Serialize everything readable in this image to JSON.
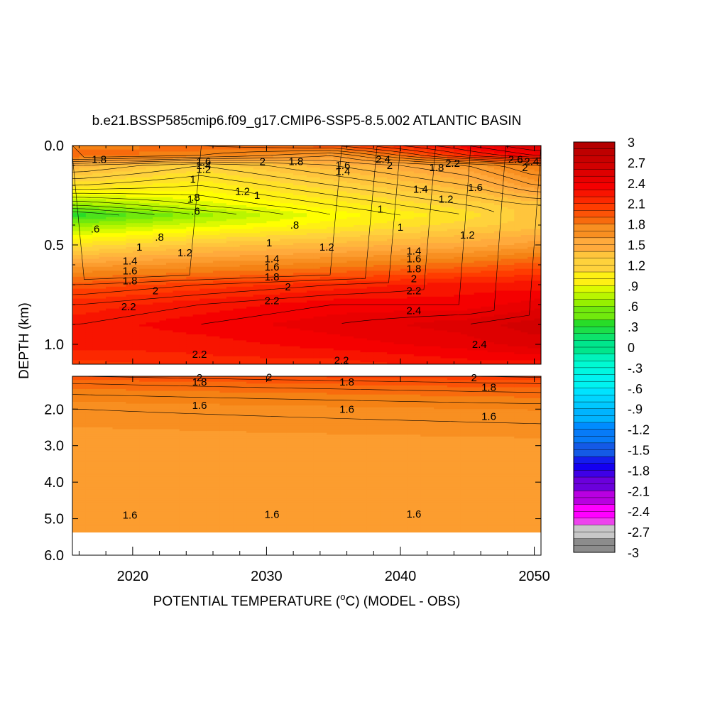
{
  "chart_data": {
    "type": "heatmap",
    "title": "b.e21.BSSP585cmip6.f09_g17.CMIP6-SSP5-8.5.002 ATLANTIC BASIN",
    "ylabel": "DEPTH (km)",
    "xlabel_parts": {
      "before": "POTENTIAL TEMPERATURE (",
      "sup": "o",
      "after": "C) (MODEL - OBS)"
    },
    "xlim": [
      2015.5,
      2050.5
    ],
    "x_ticks": [
      "2020",
      "2030",
      "2040",
      "2050"
    ],
    "upper_panel": {
      "ylim": [
        0.0,
        1.1
      ],
      "y_ticks": [
        "0.0",
        "0.5",
        "1.0"
      ]
    },
    "lower_panel": {
      "ylim": [
        1.1,
        6.0
      ],
      "y_ticks": [
        "2.0",
        "3.0",
        "4.0",
        "5.0",
        "6.0"
      ]
    },
    "colorbar": {
      "range": [
        -3,
        3
      ],
      "step": 0.1,
      "labels": [
        "3",
        "2.7",
        "2.4",
        "2.1",
        "1.8",
        "1.5",
        "1.2",
        ".9",
        ".6",
        ".3",
        "0",
        "-.3",
        "-.6",
        "-.9",
        "-1.2",
        "-1.5",
        "-1.8",
        "-2.1",
        "-2.4",
        "-2.7",
        "-3"
      ]
    },
    "depth_profile": {
      "depth_km": [
        0.0,
        0.05,
        0.1,
        0.2,
        0.3,
        0.35,
        0.4,
        0.5,
        0.6,
        0.7,
        0.8,
        0.9,
        1.0,
        1.1
      ],
      "years": [
        2016,
        2025,
        2035,
        2045,
        2050
      ],
      "values": [
        [
          1.8,
          1.9,
          2.0,
          2.4,
          2.6
        ],
        [
          1.9,
          1.8,
          1.6,
          2.2,
          2.4
        ],
        [
          1.4,
          1.2,
          1.4,
          1.6,
          1.8
        ],
        [
          1.1,
          1.0,
          1.2,
          1.4,
          1.6
        ],
        [
          0.6,
          0.8,
          1.0,
          1.2,
          1.3
        ],
        [
          0.3,
          0.6,
          0.9,
          1.1,
          1.3
        ],
        [
          0.6,
          0.8,
          1.0,
          1.2,
          1.3
        ],
        [
          1.1,
          1.3,
          1.4,
          1.5,
          1.6
        ],
        [
          1.6,
          1.7,
          1.8,
          1.9,
          2.0
        ],
        [
          2.0,
          2.1,
          2.2,
          2.3,
          2.3
        ],
        [
          2.2,
          2.3,
          2.4,
          2.4,
          2.5
        ],
        [
          2.3,
          2.4,
          2.5,
          2.6,
          2.7
        ],
        [
          2.3,
          2.3,
          2.4,
          2.5,
          2.6
        ],
        [
          2.1,
          2.2,
          2.2,
          2.3,
          2.3
        ]
      ],
      "deep": {
        "depth_km": [
          1.1,
          1.3,
          1.6,
          2.0,
          3.0,
          5.0,
          5.4
        ],
        "values": [
          2.0,
          1.9,
          1.8,
          1.7,
          1.6,
          1.6,
          1.6
        ]
      }
    },
    "contour_labels": [
      {
        "text": "1.8",
        "x": 2017.5,
        "y": 0.07,
        "panel": "upper"
      },
      {
        "text": "1.6",
        "x": 2025.3,
        "y": 0.08,
        "panel": "upper"
      },
      {
        "text": "1.4",
        "x": 2025.3,
        "y": 0.1,
        "panel": "upper"
      },
      {
        "text": "1.2",
        "x": 2025.3,
        "y": 0.12,
        "panel": "upper"
      },
      {
        "text": "1",
        "x": 2024.5,
        "y": 0.17,
        "panel": "upper"
      },
      {
        "text": "2",
        "x": 2029.7,
        "y": 0.08,
        "panel": "upper"
      },
      {
        "text": "1.8",
        "x": 2032.2,
        "y": 0.08,
        "panel": "upper"
      },
      {
        "text": "1.6",
        "x": 2035.7,
        "y": 0.1,
        "panel": "upper"
      },
      {
        "text": "1.4",
        "x": 2035.7,
        "y": 0.13,
        "panel": "upper"
      },
      {
        "text": "2.4",
        "x": 2038.7,
        "y": 0.07,
        "panel": "upper"
      },
      {
        "text": "2",
        "x": 2039.2,
        "y": 0.1,
        "panel": "upper"
      },
      {
        "text": "1.8",
        "x": 2042.7,
        "y": 0.11,
        "panel": "upper"
      },
      {
        "text": "2.2",
        "x": 2043.9,
        "y": 0.09,
        "panel": "upper"
      },
      {
        "text": "2.6",
        "x": 2048.6,
        "y": 0.07,
        "panel": "upper"
      },
      {
        "text": "2.4",
        "x": 2049.8,
        "y": 0.08,
        "panel": "upper"
      },
      {
        "text": "2",
        "x": 2049.3,
        "y": 0.11,
        "panel": "upper"
      },
      {
        "text": ".8",
        "x": 2024.7,
        "y": 0.26,
        "panel": "upper"
      },
      {
        "text": ".6",
        "x": 2024.7,
        "y": 0.33,
        "panel": "upper"
      },
      {
        "text": "1",
        "x": 2024.3,
        "y": 0.27,
        "panel": "upper"
      },
      {
        "text": "1",
        "x": 2029.3,
        "y": 0.25,
        "panel": "upper"
      },
      {
        "text": "1.2",
        "x": 2028.2,
        "y": 0.23,
        "panel": "upper"
      },
      {
        "text": "1.4",
        "x": 2041.5,
        "y": 0.22,
        "panel": "upper"
      },
      {
        "text": "1.6",
        "x": 2045.6,
        "y": 0.21,
        "panel": "upper"
      },
      {
        "text": "1.2",
        "x": 2043.4,
        "y": 0.27,
        "panel": "upper"
      },
      {
        "text": "1",
        "x": 2038.5,
        "y": 0.32,
        "panel": "upper"
      },
      {
        "text": "1",
        "x": 2040.0,
        "y": 0.41,
        "panel": "upper"
      },
      {
        "text": ".8",
        "x": 2032.1,
        "y": 0.4,
        "panel": "upper"
      },
      {
        "text": ".6",
        "x": 2017.2,
        "y": 0.42,
        "panel": "upper"
      },
      {
        "text": ".8",
        "x": 2022.0,
        "y": 0.46,
        "panel": "upper"
      },
      {
        "text": "1",
        "x": 2020.5,
        "y": 0.51,
        "panel": "upper"
      },
      {
        "text": "1.2",
        "x": 2023.9,
        "y": 0.54,
        "panel": "upper"
      },
      {
        "text": "1",
        "x": 2030.2,
        "y": 0.49,
        "panel": "upper"
      },
      {
        "text": "1.2",
        "x": 2034.5,
        "y": 0.51,
        "panel": "upper"
      },
      {
        "text": "1.2",
        "x": 2045.0,
        "y": 0.45,
        "panel": "upper"
      },
      {
        "text": "1.4",
        "x": 2019.8,
        "y": 0.58,
        "panel": "upper"
      },
      {
        "text": "1.6",
        "x": 2019.8,
        "y": 0.63,
        "panel": "upper"
      },
      {
        "text": "1.8",
        "x": 2019.8,
        "y": 0.68,
        "panel": "upper"
      },
      {
        "text": "1.4",
        "x": 2030.4,
        "y": 0.57,
        "panel": "upper"
      },
      {
        "text": "1.6",
        "x": 2030.4,
        "y": 0.61,
        "panel": "upper"
      },
      {
        "text": "1.8",
        "x": 2030.4,
        "y": 0.66,
        "panel": "upper"
      },
      {
        "text": "2",
        "x": 2031.6,
        "y": 0.71,
        "panel": "upper"
      },
      {
        "text": "1.4",
        "x": 2041.0,
        "y": 0.53,
        "panel": "upper"
      },
      {
        "text": "1.6",
        "x": 2041.0,
        "y": 0.57,
        "panel": "upper"
      },
      {
        "text": "1.8",
        "x": 2041.0,
        "y": 0.62,
        "panel": "upper"
      },
      {
        "text": "2",
        "x": 2041.0,
        "y": 0.67,
        "panel": "upper"
      },
      {
        "text": "2.2",
        "x": 2041.0,
        "y": 0.73,
        "panel": "upper"
      },
      {
        "text": "2",
        "x": 2021.7,
        "y": 0.73,
        "panel": "upper"
      },
      {
        "text": "2.2",
        "x": 2019.7,
        "y": 0.81,
        "panel": "upper"
      },
      {
        "text": "2.2",
        "x": 2030.4,
        "y": 0.78,
        "panel": "upper"
      },
      {
        "text": "2.4",
        "x": 2041.0,
        "y": 0.83,
        "panel": "upper"
      },
      {
        "text": "2.4",
        "x": 2045.9,
        "y": 1.0,
        "panel": "upper"
      },
      {
        "text": "2.2",
        "x": 2025.0,
        "y": 1.05,
        "panel": "upper"
      },
      {
        "text": "2.2",
        "x": 2035.6,
        "y": 1.08,
        "panel": "upper"
      },
      {
        "text": "2",
        "x": 2025.0,
        "y": 1.14,
        "panel": "lower"
      },
      {
        "text": "1.8",
        "x": 2025.0,
        "y": 1.26,
        "panel": "lower"
      },
      {
        "text": "2",
        "x": 2030.2,
        "y": 1.13,
        "panel": "lower"
      },
      {
        "text": "1.8",
        "x": 2036.0,
        "y": 1.26,
        "panel": "lower"
      },
      {
        "text": "2",
        "x": 2045.5,
        "y": 1.14,
        "panel": "lower"
      },
      {
        "text": "1.8",
        "x": 2046.6,
        "y": 1.4,
        "panel": "lower"
      },
      {
        "text": "1.6",
        "x": 2025.0,
        "y": 1.9,
        "panel": "lower"
      },
      {
        "text": "1.6",
        "x": 2036.0,
        "y": 2.0,
        "panel": "lower"
      },
      {
        "text": "1.6",
        "x": 2046.6,
        "y": 2.2,
        "panel": "lower"
      },
      {
        "text": "1.6",
        "x": 2019.8,
        "y": 4.9,
        "panel": "lower"
      },
      {
        "text": "1.6",
        "x": 2030.4,
        "y": 4.88,
        "panel": "lower"
      },
      {
        "text": "1.6",
        "x": 2041.0,
        "y": 4.87,
        "panel": "lower"
      }
    ]
  }
}
